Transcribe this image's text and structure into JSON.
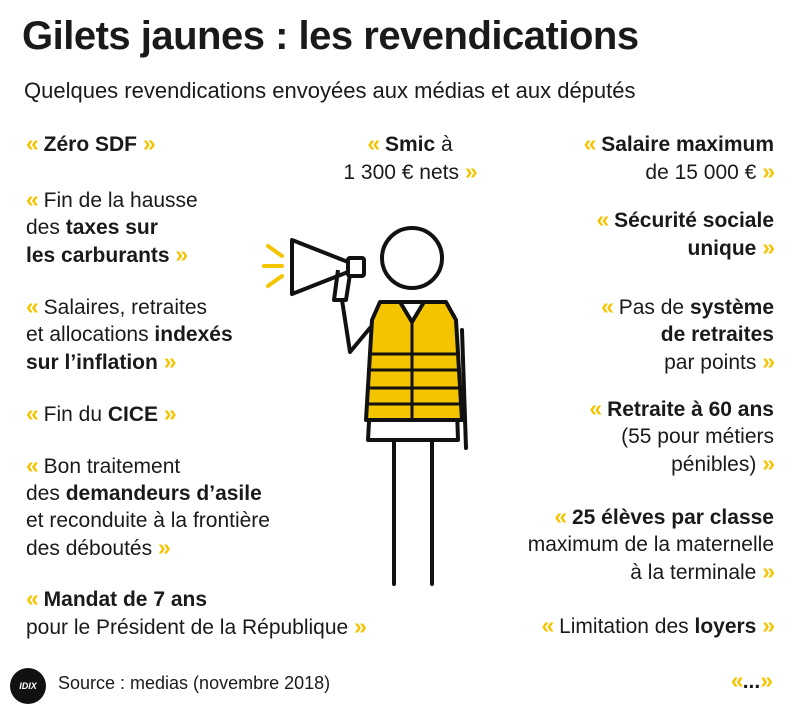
{
  "header": {
    "title": "Gilets jaunes : les revendications",
    "subtitle": "Quelques revendications envoyées aux médias et aux députés"
  },
  "quote_open": "«",
  "quote_close": "»",
  "left": {
    "c1": {
      "l1b": "Zéro SDF"
    },
    "c2": {
      "l1": "Fin de la hausse",
      "l2a": "des ",
      "l2b": "taxes sur",
      "l3b": "les carburants"
    },
    "c3": {
      "l1": "Salaires, retraites",
      "l2a": "et allocations ",
      "l2b": "indexés",
      "l3b": "sur l’inflation"
    },
    "c4": {
      "l1a": "Fin du ",
      "l1b": "CICE"
    },
    "c5": {
      "l1": "Bon traitement",
      "l2a": "des ",
      "l2b": "demandeurs d’asile",
      "l3": "et reconduite à la frontière",
      "l4": "des déboutés"
    },
    "c6": {
      "l1b": "Mandat de 7 ans",
      "l2": "pour le Président de la République"
    }
  },
  "center": {
    "c1": {
      "l1b": "Smic",
      "l1c": " à",
      "l2": "1 300 € nets"
    }
  },
  "right": {
    "c1": {
      "l1b": "Salaire maximum",
      "l2": "de 15 000 €"
    },
    "c2": {
      "l1b": "Sécurité sociale",
      "l2b": "unique"
    },
    "c3": {
      "l1a": "Pas de ",
      "l1b": "système",
      "l2b": "de retraites",
      "l3": "par points"
    },
    "c4": {
      "l1b": "Retraite à 60 ans",
      "l2": "(55 pour métiers",
      "l3": "pénibles)"
    },
    "c5": {
      "l1b": "25 élèves par classe",
      "l2": "maximum de la maternelle",
      "l3": "à la terminale"
    },
    "c6": {
      "l1a": "Limitation des ",
      "l1b": "loyers"
    },
    "etc": "..."
  },
  "footer": {
    "logo_text": "IDIX",
    "source": "Source : medias (novembre 2018)"
  },
  "colors": {
    "accent": "#f5c400",
    "text": "#1a1a1a",
    "figure": "#111111",
    "vest": "#f5c400"
  },
  "illustration": {
    "subject": "person-in-yellow-vest-with-megaphone"
  }
}
